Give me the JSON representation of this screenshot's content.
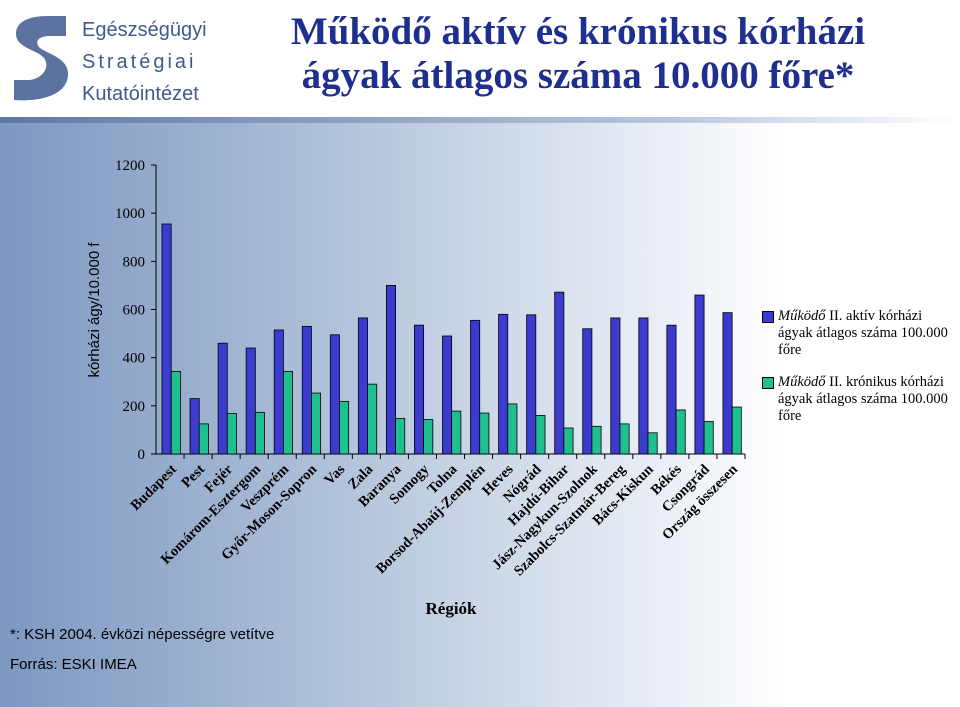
{
  "header": {
    "logo_lines": [
      "Egészségügyi",
      "Stratégiai",
      "Kutatóintézet"
    ],
    "title_line1": "Működő aktív és krónikus kórházi",
    "title_line2": "ágyak átlagos száma 10.000 főre*"
  },
  "footer": {
    "note": "*: KSH 2004. évközi népességre vetítve",
    "source": "Forrás: ESKI IMEA"
  },
  "colors": {
    "series_aktiv": "#3b3bd0",
    "series_kronikus": "#1fbf8f",
    "title": "#1f2f8f",
    "logo": "#3f5a8f"
  },
  "chart_data": {
    "type": "bar",
    "xlabel": "Régiók",
    "ylabel": "kórházi ágy/10.000 f",
    "ylim": [
      0,
      1200
    ],
    "yticks": [
      0,
      200,
      400,
      600,
      800,
      1000,
      1200
    ],
    "grid": false,
    "legend_position": "right",
    "categories": [
      "Budapest",
      "Pest",
      "Fejér",
      "Komárom-Esztergom",
      "Veszprém",
      "Győr-Moson-Sopron",
      "Vas",
      "Zala",
      "Baranya",
      "Somogy",
      "Tolna",
      "Borsod-Abaúj-Zemplén",
      "Heves",
      "Nógrád",
      "Hajdú-Bihar",
      "Jász-Nagykun-Szolnok",
      "Szabolcs-Szatmár-Bereg",
      "Bács-Kiskun",
      "Békés",
      "Csongrád",
      "Ország összesen"
    ],
    "series": [
      {
        "name": "Működő II. aktív kórházi ágyak átlagos száma 100.000 főre",
        "name_head": "Működő",
        "name_rest": " II. aktív kórházi ágyak átlagos száma 100.000 főre",
        "values": [
          955,
          230,
          460,
          440,
          515,
          530,
          495,
          565,
          700,
          535,
          490,
          555,
          580,
          578,
          672,
          520,
          565,
          565,
          535,
          660,
          587
        ]
      },
      {
        "name": "Működő II. krónikus kórházi ágyak átlagos száma 100.000 főre",
        "name_head": "Működő",
        "name_rest": " II. krónikus kórházi ágyak átlagos száma 100.000 főre",
        "values": [
          343,
          125,
          168,
          173,
          343,
          253,
          218,
          290,
          148,
          143,
          178,
          170,
          208,
          160,
          108,
          115,
          125,
          88,
          183,
          135,
          195
        ]
      }
    ]
  }
}
